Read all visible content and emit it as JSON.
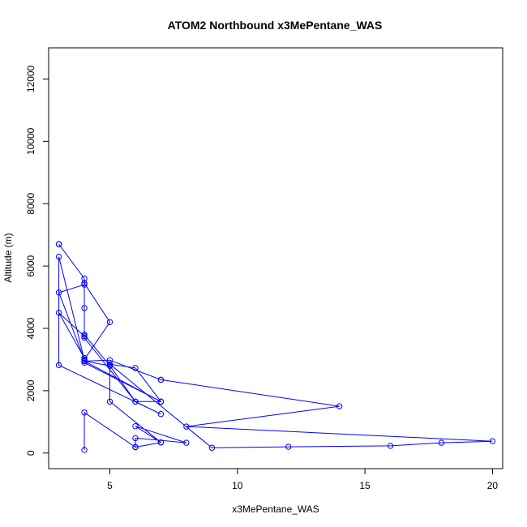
{
  "chart_data": {
    "type": "line",
    "title": "ATOM2 Northbound x3MePentane_WAS",
    "xlabel": "x3MePentane_WAS",
    "ylabel": "Altitude (m)",
    "xlim": [
      2.6,
      20.4
    ],
    "ylim": [
      -500,
      13000
    ],
    "xticks": [
      5,
      10,
      15,
      20
    ],
    "yticks": [
      0,
      2000,
      4000,
      6000,
      8000,
      10000,
      12000
    ],
    "grid": false,
    "line_color": "#0000ff",
    "markers": "open-circle",
    "series": [
      {
        "x": [
          3,
          3,
          4,
          4,
          5,
          4,
          3,
          4,
          4,
          4,
          5,
          6,
          4,
          4,
          3,
          4,
          4,
          5,
          7,
          7,
          14,
          8,
          20,
          18,
          16,
          12,
          9,
          5,
          6,
          7,
          7,
          6,
          7,
          3,
          3,
          4,
          4,
          7,
          4,
          5,
          5,
          7,
          6,
          8,
          6,
          6,
          7,
          6,
          6,
          4,
          4
        ],
        "y": [
          6700,
          6700,
          5600,
          5450,
          4200,
          3000,
          5150,
          5400,
          4650,
          3800,
          2800,
          1650,
          3700,
          3750,
          4500,
          3050,
          2950,
          2980,
          2350,
          2350,
          1500,
          850,
          380,
          330,
          230,
          200,
          170,
          2850,
          2730,
          1650,
          1650,
          1650,
          1250,
          2820,
          6300,
          3000,
          2900,
          1650,
          2950,
          2800,
          1650,
          340,
          860,
          330,
          480,
          190,
          340,
          190,
          190,
          1300,
          100
        ]
      }
    ]
  }
}
